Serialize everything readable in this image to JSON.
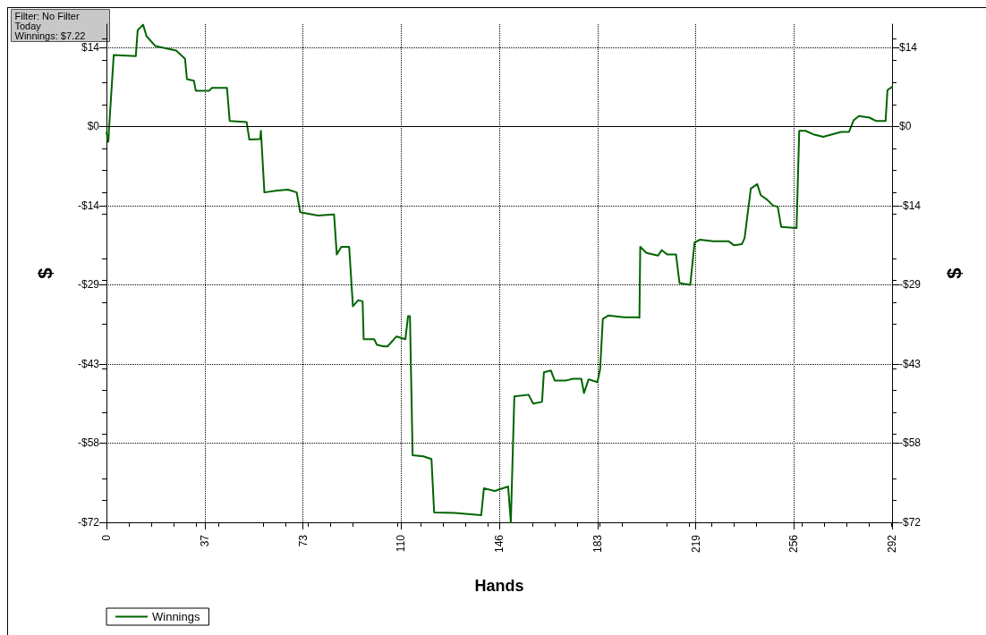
{
  "chart_data": {
    "type": "line",
    "xlabel": "Hands",
    "ylabel": "$",
    "y2label": "$",
    "annotations": [
      "Filter: No Filter",
      "Today",
      "Winnings: $7.22"
    ],
    "series": [
      {
        "name": "Winnings",
        "color": "#006400",
        "x": [
          0,
          0.7,
          1,
          2.7,
          10.9,
          11.6,
          13.6,
          14.9,
          18.2,
          25.9,
          29.2,
          29.9,
          32.5,
          33.2,
          38.2,
          39.2,
          44.8,
          45.8,
          52.1,
          53.1,
          57.1,
          57.4,
          58.7,
          63.0,
          67.4,
          70.7,
          72.0,
          78.6,
          84.6,
          85.6,
          87.3,
          90.2,
          91.6,
          93.6,
          95.2,
          95.6,
          99.5,
          100.5,
          102.9,
          104.5,
          107.8,
          111.1,
          112.1,
          112.8,
          113.8,
          117.8,
          120.8,
          121.8,
          129.4,
          139.3,
          140.3,
          144.3,
          149.3,
          150.3,
          151.6,
          156.9,
          158.6,
          161.9,
          162.6,
          165.2,
          166.6,
          170.9,
          173.5,
          176.5,
          177.5,
          179.2,
          182.5,
          183.5,
          184.5,
          186.5,
          192.4,
          197.4,
          198.1,
          198.4,
          200.7,
          205.0,
          206.4,
          208.4,
          211.7,
          213.0,
          217.0,
          218.6,
          220.6,
          225.6,
          231.3,
          233.2,
          236.2,
          237.2,
          239.5,
          241.9,
          243.2,
          245.5,
          247.8,
          249.5,
          250.8,
          256.5,
          257.5,
          259.8,
          263.1,
          266.4,
          269.4,
          273.1,
          276.0,
          277.7,
          279.7,
          283.6,
          286.0,
          289.6,
          290.3,
          292
        ],
        "values": [
          -1.1,
          -2.8,
          0,
          13.0,
          12.8,
          17.5,
          18.5,
          16.4,
          14.6,
          13.8,
          12.3,
          8.6,
          8.3,
          6.5,
          6.5,
          7.0,
          7.0,
          1.0,
          0.8,
          -2.4,
          -2.3,
          -0.8,
          -12.0,
          -11.7,
          -11.5,
          -12.0,
          -15.6,
          -16.2,
          -16.0,
          -23.3,
          -21.9,
          -21.9,
          -32.7,
          -31.6,
          -31.8,
          -38.7,
          -38.7,
          -39.7,
          -40.0,
          -40.0,
          -38.2,
          -38.7,
          -34.5,
          -34.5,
          -59.8,
          -60.0,
          -60.5,
          -70.2,
          -70.3,
          -70.7,
          -65.8,
          -66.3,
          -65.5,
          -72,
          -49.1,
          -48.8,
          -50.4,
          -50.1,
          -44.7,
          -44.4,
          -46.2,
          -46.2,
          -45.9,
          -45.9,
          -48.5,
          -46.0,
          -46.5,
          -44.1,
          -35.0,
          -34.4,
          -34.7,
          -34.7,
          -34.8,
          -21.9,
          -23.0,
          -23.5,
          -22.5,
          -23.3,
          -23.3,
          -28.5,
          -28.8,
          -21.1,
          -20.6,
          -20.9,
          -20.9,
          -21.6,
          -21.4,
          -20.3,
          -11.3,
          -10.5,
          -12.5,
          -13.3,
          -14.4,
          -14.6,
          -18.3,
          -18.5,
          -0.8,
          -0.8,
          -1.5,
          -1.9,
          -1.5,
          -1.0,
          -1.0,
          1.1,
          1.9,
          1.6,
          1.0,
          1.0,
          6.6,
          7.2
        ]
      }
    ],
    "xlim": [
      0,
      292
    ],
    "xticks": [
      0,
      {
        "value": 36.5,
        "label": "37"
      },
      73,
      {
        "value": 109.5,
        "label": "110"
      },
      146,
      {
        "value": 182.5,
        "label": "183"
      },
      219,
      {
        "value": 255.5,
        "label": "256"
      },
      292
    ],
    "ylim": [
      -72,
      18.6
    ],
    "yticks": [
      {
        "value": -72,
        "label": "-$72"
      },
      {
        "value": -57.6,
        "label": "-$58"
      },
      {
        "value": -43.2,
        "label": "-$43"
      },
      {
        "value": -28.8,
        "label": "-$29"
      },
      {
        "value": -14.4,
        "label": "-$14"
      },
      {
        "value": 0,
        "label": "$0"
      },
      {
        "value": 14.4,
        "label": "$14"
      }
    ],
    "y2lim": [
      -72,
      18.6
    ],
    "y2ticks": [
      {
        "value": -72,
        "label": "-$72"
      },
      {
        "value": -57.6,
        "label": "-$58"
      },
      {
        "value": -43.2,
        "label": "-$43"
      },
      {
        "value": -28.8,
        "label": "-$29"
      },
      {
        "value": -14.4,
        "label": "-$14"
      },
      {
        "value": 0,
        "label": "$0"
      },
      {
        "value": 14.4,
        "label": "$14"
      }
    ],
    "ref_lines": [
      {
        "axis": "y",
        "value": 0,
        "color": "#000000"
      }
    ],
    "grid": true,
    "legend": "bottom left",
    "line_style": "solid",
    "marker": "none"
  }
}
